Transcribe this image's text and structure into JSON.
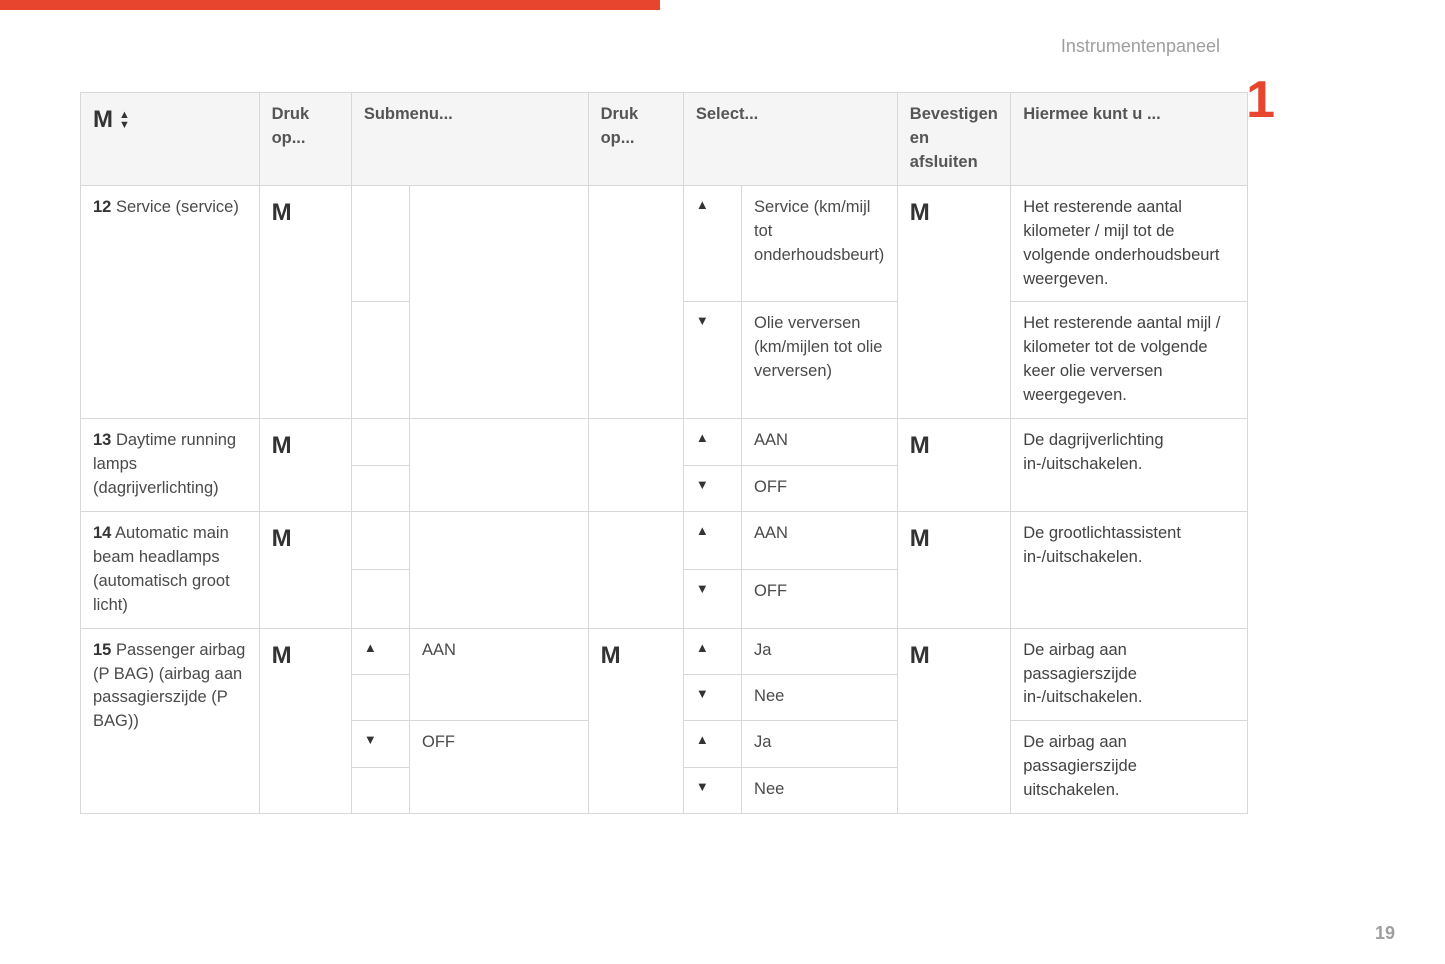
{
  "page": {
    "section_title": "Instrumentenpaneel",
    "chapter_number": "1",
    "page_number": "19"
  },
  "accent_color": "#e8452f",
  "headers": {
    "col1_symbol": "M",
    "druk1": "Druk op...",
    "submenu": "Submenu...",
    "druk2": "Druk op...",
    "select": "Select...",
    "confirm": "Bevestigen en afsluiten",
    "result": "Hiermee kunt u ..."
  },
  "symbols": {
    "M": "M",
    "up": "▲",
    "down": "▼"
  },
  "rows": [
    {
      "num": "12",
      "label": "Service (service)",
      "druk1": "M",
      "submenu_arrows": [
        "",
        ""
      ],
      "submenu_text": "",
      "druk2": "",
      "select": [
        {
          "arrow": "up",
          "text": "Service (km/mijl tot onderhoudsbeurt)"
        },
        {
          "arrow": "down",
          "text": "Olie verversen (km/mijlen tot olie verversen)"
        }
      ],
      "confirm": "M",
      "results": [
        "Het resterende aantal kilometer / mijl tot de volgende onderhoudsbeurt weergeven.",
        "Het resterende aantal mijl / kilometer tot de volgende keer olie verversen weergegeven."
      ]
    },
    {
      "num": "13",
      "label": "Daytime running lamps (dagrijverlichting)",
      "druk1": "M",
      "submenu_arrows": [
        "",
        ""
      ],
      "submenu_text": "",
      "druk2": "",
      "select": [
        {
          "arrow": "up",
          "text": "AAN"
        },
        {
          "arrow": "down",
          "text": "OFF"
        }
      ],
      "confirm": "M",
      "results": [
        "De dagrijverlichting in-/uitschakelen."
      ]
    },
    {
      "num": "14",
      "label": "Automatic main beam headlamps (automatisch groot licht)",
      "druk1": "M",
      "submenu_arrows": [
        "",
        ""
      ],
      "submenu_text": "",
      "druk2": "",
      "select": [
        {
          "arrow": "up",
          "text": "AAN"
        },
        {
          "arrow": "down",
          "text": "OFF"
        }
      ],
      "confirm": "M",
      "results": [
        "De grootlichtassistent in-/uitschakelen."
      ]
    },
    {
      "num": "15",
      "label": "Passenger airbag (P BAG) (airbag aan passagierszijde (P BAG))",
      "druk1": "M",
      "submenu_blocks": [
        {
          "arrows": [
            "up",
            ""
          ],
          "text": "AAN"
        },
        {
          "arrows": [
            "down",
            ""
          ],
          "text": "OFF"
        }
      ],
      "druk2": "M",
      "select_blocks": [
        [
          {
            "arrow": "up",
            "text": "Ja"
          },
          {
            "arrow": "down",
            "text": "Nee"
          }
        ],
        [
          {
            "arrow": "up",
            "text": "Ja"
          },
          {
            "arrow": "down",
            "text": "Nee"
          }
        ]
      ],
      "confirm": "M",
      "results": [
        "De airbag aan passagierszijde in-/uitschakelen.",
        "De airbag aan passagierszijde uitschakelen."
      ]
    }
  ]
}
